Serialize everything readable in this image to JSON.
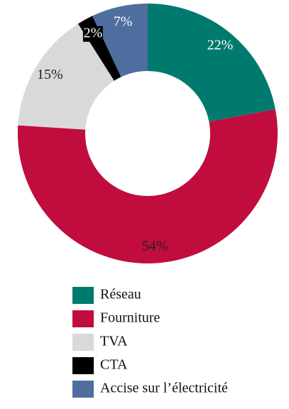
{
  "chart_data": {
    "type": "pie",
    "categories": [
      "Réseau",
      "Fourniture",
      "TVA",
      "CTA",
      "Accise sur l’électricité"
    ],
    "values": [
      22,
      54,
      15,
      2,
      7
    ],
    "value_labels": [
      "22%",
      "54%",
      "15%",
      "2%",
      "7%"
    ],
    "colors": [
      "#007a6e",
      "#c00d3e",
      "#d9d9d9",
      "#000000",
      "#4f6ea0"
    ],
    "donut": true
  }
}
